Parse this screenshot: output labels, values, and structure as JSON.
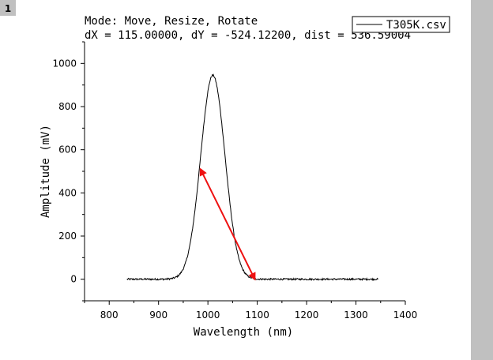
{
  "layer_badge": "1",
  "tool_status": {
    "mode_line": "Mode: Move, Resize, Rotate",
    "measure_line": "dX = 115.00000, dY = -524.12200, dist = 536.59004"
  },
  "colors": {
    "trace": "#000000",
    "arrow": "#ee1111",
    "side_panel": "#c0c0c0",
    "badge_bg": "#c0c0c0"
  },
  "chart_data": {
    "type": "line",
    "title": "",
    "xlabel": "Wavelength (nm)",
    "ylabel": "Amplitude (mV)",
    "xlim": [
      750,
      1400
    ],
    "ylim": [
      -100,
      1100
    ],
    "xticks": [
      800,
      900,
      1000,
      1100,
      1200,
      1300,
      1400
    ],
    "yticks": [
      0,
      200,
      400,
      600,
      800,
      1000
    ],
    "grid": false,
    "legend": {
      "position": "top-right",
      "entries": [
        "T305K.csv"
      ]
    },
    "series": [
      {
        "name": "T305K.csv",
        "x_range": [
          836,
          1345
        ],
        "peak": {
          "x": 1010,
          "y": 945
        },
        "fwhm_nm": 58,
        "baseline": 0,
        "noise_mv": 4
      }
    ],
    "annotation_arrow": {
      "from": [
        985,
        510
      ],
      "to": [
        1095,
        0
      ]
    }
  }
}
